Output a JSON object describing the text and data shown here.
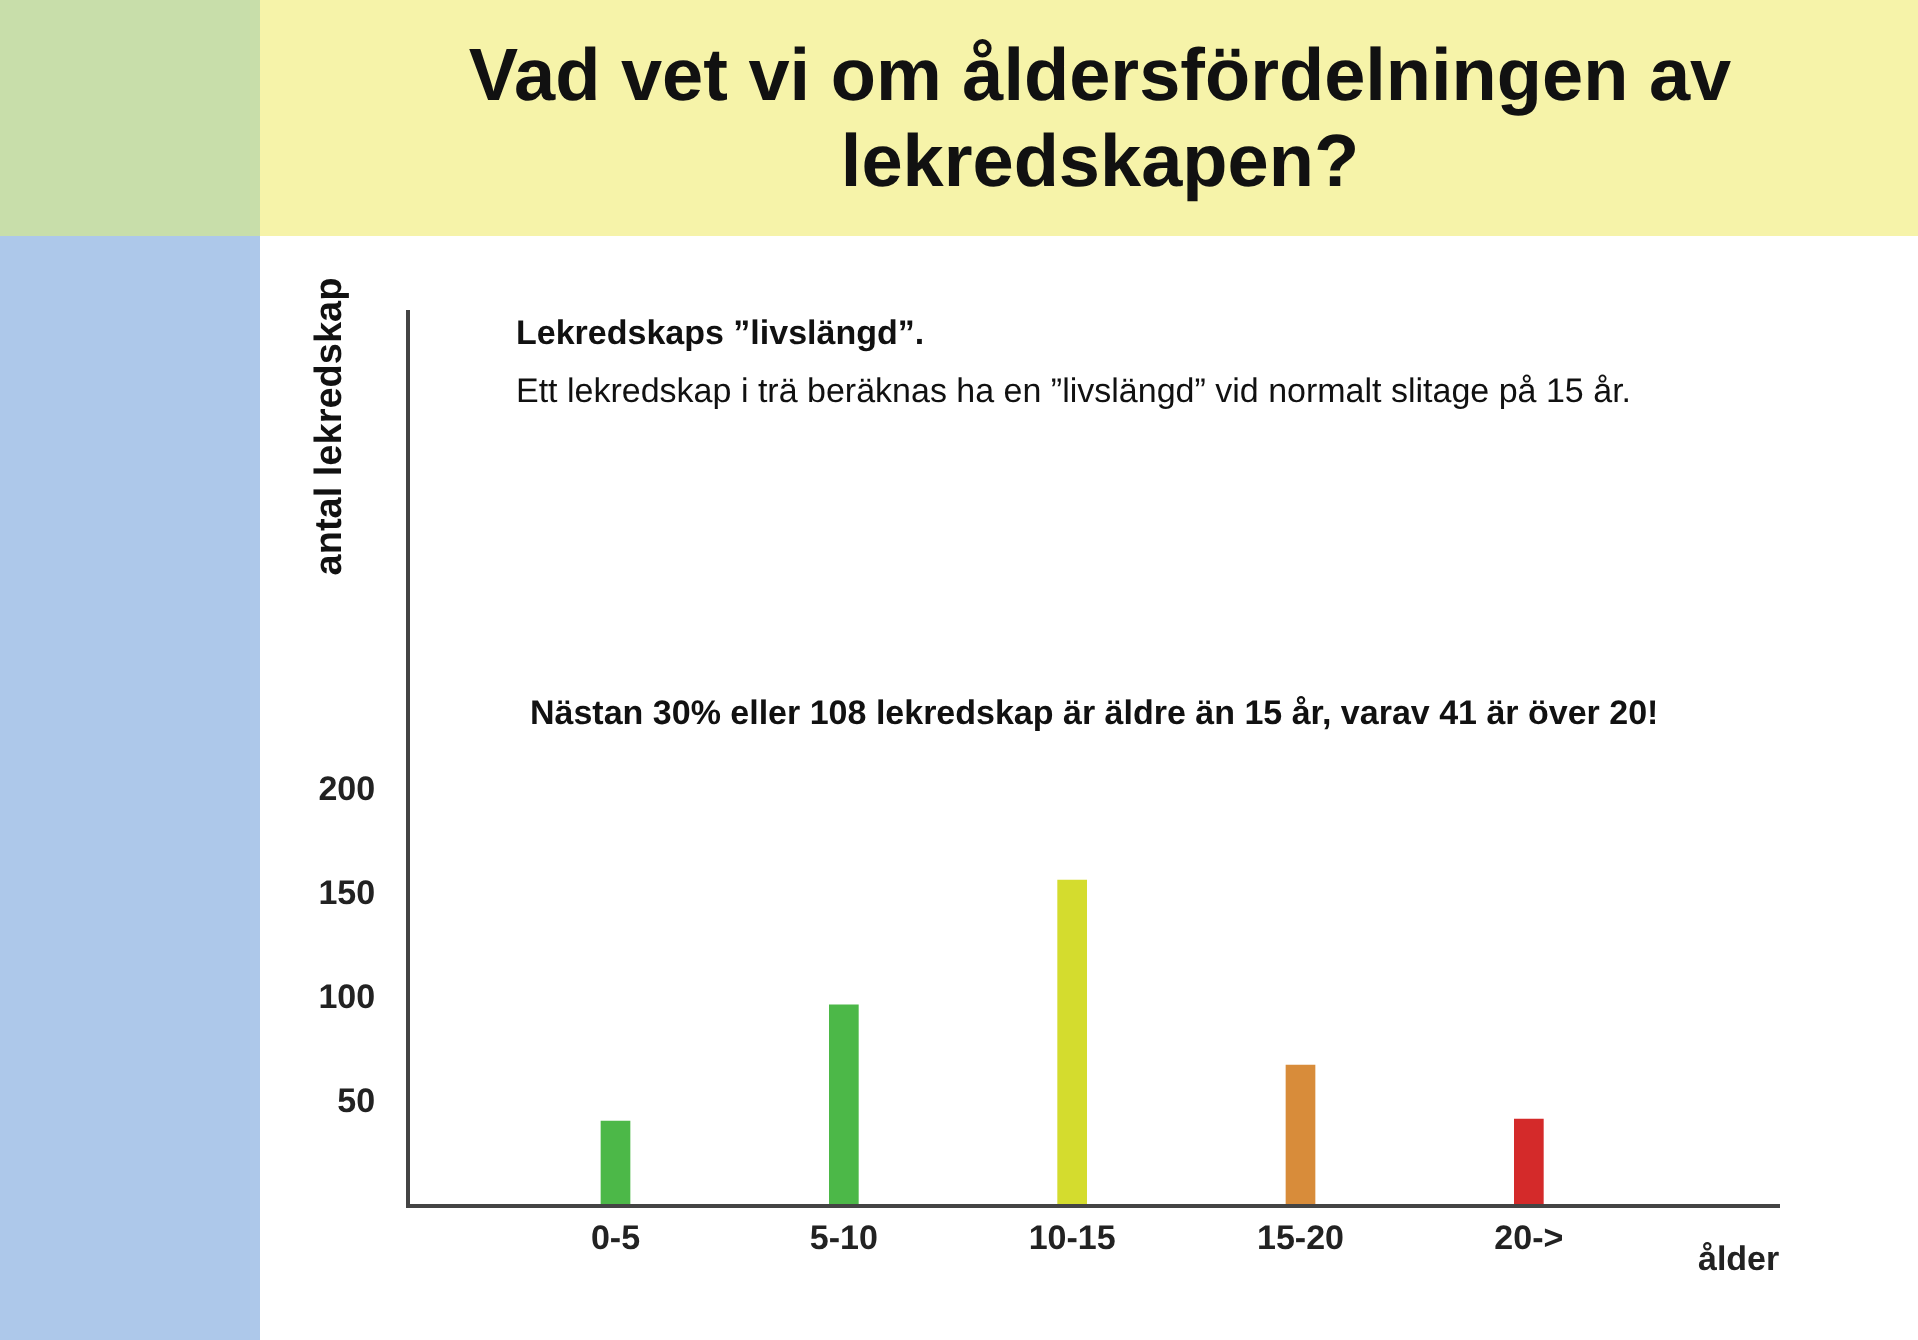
{
  "chart_data": {
    "type": "bar",
    "title": "Vad vet vi om åldersfördelningen av lekredskapen?",
    "ylabel": "antal lekredskap",
    "xlabel": "ålder",
    "categories": [
      "0-5",
      "5-10",
      "10-15",
      "15-20",
      "20->"
    ],
    "values": [
      40,
      96,
      156,
      67,
      41
    ],
    "colors": [
      "#4cb848",
      "#4cb848",
      "#d4dc2e",
      "#d88c3a",
      "#d42a2a"
    ],
    "ylim": [
      0,
      430
    ],
    "yticks": [
      50,
      100,
      150,
      200
    ],
    "grid": false,
    "annotations": [
      "Lekredskaps ”livslängd”.",
      "Ett lekredskap i trä beräknas ha en ”livslängd” vid normalt slitage på 15 år.",
      "Nästan 30% eller 108 lekredskap är äldre än 15 år, varav 41 är över 20!"
    ]
  }
}
